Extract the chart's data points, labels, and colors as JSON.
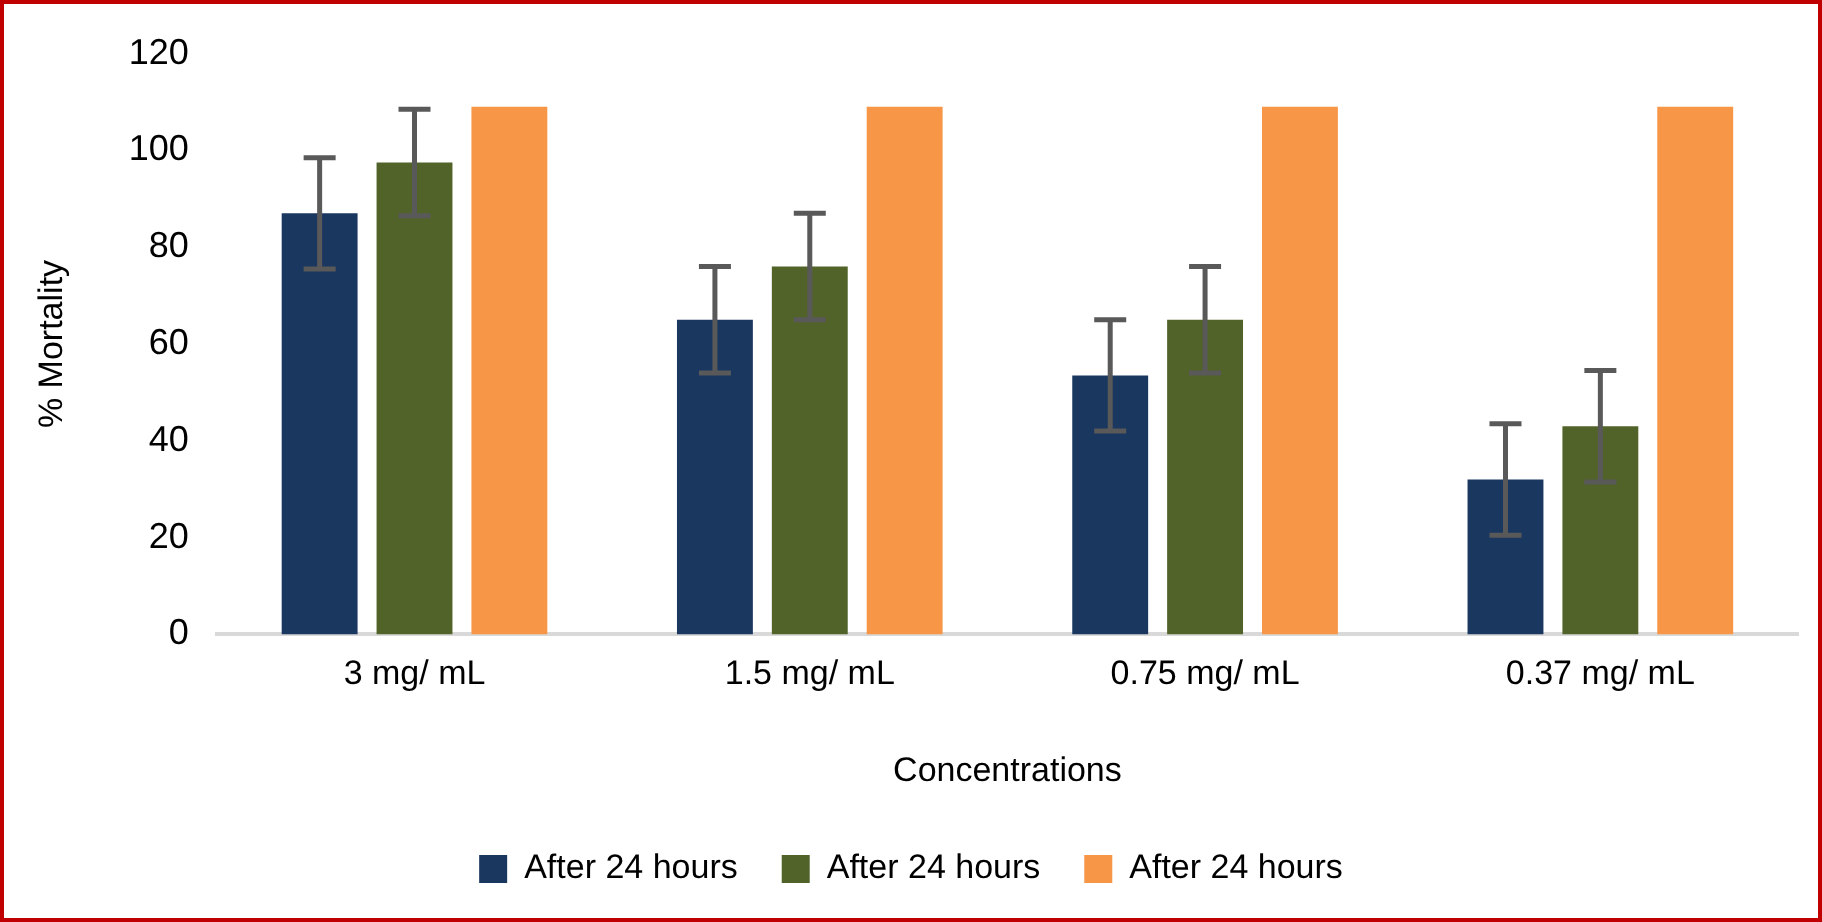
{
  "chart_data": {
    "type": "bar",
    "xlabel": "Concentrations",
    "ylabel": "% Mortality",
    "categories": [
      "3 mg/ mL",
      "1.5 mg/ mL",
      "0.75 mg/ mL",
      "0.37 mg/ mL"
    ],
    "series": [
      {
        "name": "After 24 hours",
        "color": "#1a3760",
        "values": [
          87,
          65,
          53.5,
          32
        ],
        "errors": [
          11.5,
          11,
          11.5,
          11.5
        ]
      },
      {
        "name": "After 24 hours",
        "color": "#52632a",
        "values": [
          97.5,
          76,
          65,
          43
        ],
        "errors": [
          11,
          11,
          11,
          11.5
        ]
      },
      {
        "name": "After 24 hours",
        "color": "#f79646",
        "values": [
          109,
          109,
          109,
          109
        ]
      }
    ],
    "ylim": [
      0,
      120
    ],
    "yticks": [
      0,
      20,
      40,
      60,
      80,
      100,
      120
    ],
    "grid": false,
    "legend": "bottom"
  }
}
